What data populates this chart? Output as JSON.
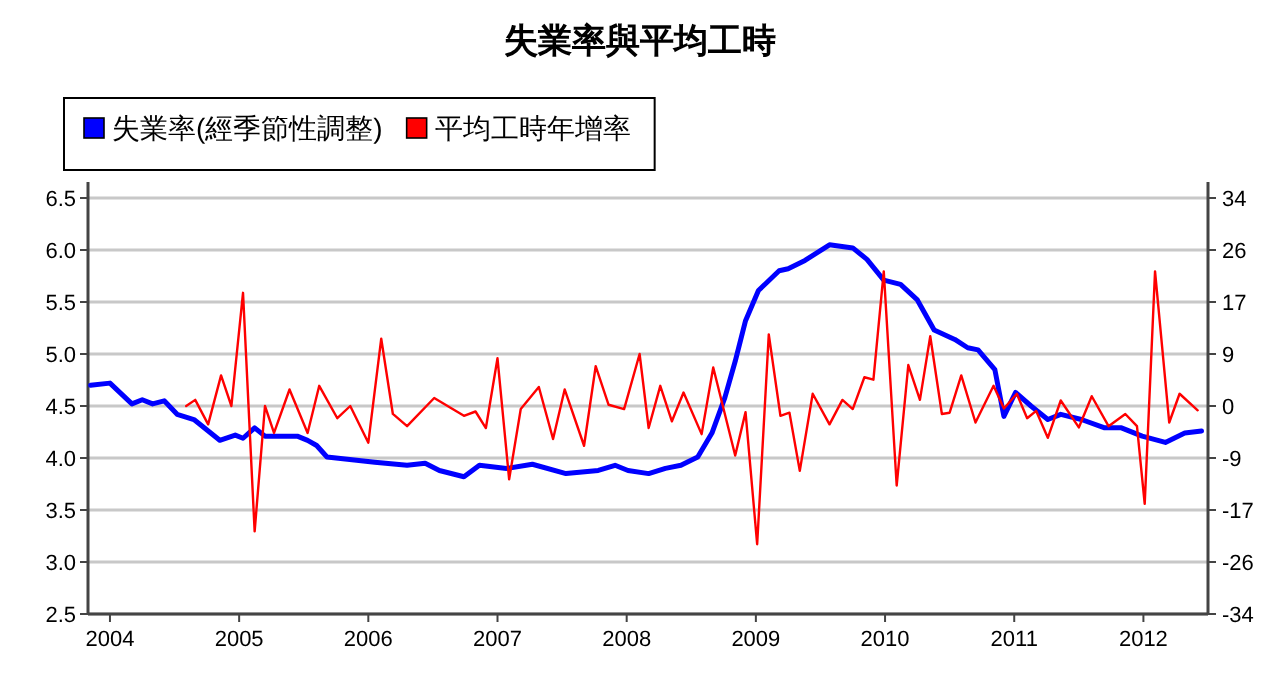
{
  "chart_data": {
    "type": "line",
    "title": "失業率與平均工時",
    "xlim": [
      2003.83,
      2012.5
    ],
    "xticks": [
      {
        "value": 2004,
        "label": "2004"
      },
      {
        "value": 2005,
        "label": "2005"
      },
      {
        "value": 2006,
        "label": "2006"
      },
      {
        "value": 2007,
        "label": "2007"
      },
      {
        "value": 2008,
        "label": "2008"
      },
      {
        "value": 2009,
        "label": "2009"
      },
      {
        "value": 2010,
        "label": "2010"
      },
      {
        "value": 2011,
        "label": "2011"
      },
      {
        "value": 2012,
        "label": "2012"
      }
    ],
    "ylim": [
      2.5,
      6.5
    ],
    "yticks": [
      {
        "value": 2.5,
        "label": "2.5"
      },
      {
        "value": 3,
        "label": "3.0"
      },
      {
        "value": 3.5,
        "label": "3.5"
      },
      {
        "value": 4,
        "label": "4.0"
      },
      {
        "value": 4.5,
        "label": "4.5"
      },
      {
        "value": 5,
        "label": "5.0"
      },
      {
        "value": 5.5,
        "label": "5.5"
      },
      {
        "value": 6,
        "label": "6.0"
      },
      {
        "value": 6.5,
        "label": "6.5"
      }
    ],
    "y2lim": [
      -34,
      34
    ],
    "y2ticks": [
      -34,
      {
        "value": -25.5,
        "label": "-26"
      },
      -17,
      {
        "value": -8.5,
        "label": "-9"
      },
      0,
      {
        "value": 8.5,
        "label": "9"
      },
      17,
      {
        "value": 25.5,
        "label": "26"
      },
      34
    ],
    "grid": "y",
    "legend": "top left",
    "series": [
      {
        "name": "失業率(經季節性調整)",
        "color": "#0000ff",
        "x": [
          2003.85,
          2004.0,
          2004.17,
          2004.25,
          2004.33,
          2004.42,
          2004.52,
          2004.65,
          2004.85,
          2004.97,
          2005.03,
          2005.12,
          2005.2,
          2005.45,
          2005.53,
          2005.6,
          2005.68,
          2006.05,
          2006.3,
          2006.44,
          2006.55,
          2006.74,
          2006.86,
          2007.07,
          2007.27,
          2007.53,
          2007.78,
          2007.91,
          2008.01,
          2008.17,
          2008.3,
          2008.42,
          2008.55,
          2008.66,
          2008.76,
          2008.84,
          2008.92,
          2009.02,
          2009.18,
          2009.25,
          2009.38,
          2009.57,
          2009.75,
          2009.86,
          2009.99,
          2010.12,
          2010.25,
          2010.38,
          2010.54,
          2010.64,
          2010.72,
          2010.85,
          2010.92,
          2011.01,
          2011.13,
          2011.26,
          2011.36,
          2011.52,
          2011.7,
          2011.83,
          2011.99,
          2012.17,
          2012.32,
          2012.45
        ],
        "values": [
          4.7,
          4.72,
          4.52,
          4.56,
          4.52,
          4.55,
          4.42,
          4.37,
          4.17,
          4.22,
          4.19,
          4.29,
          4.21,
          4.21,
          4.17,
          4.12,
          4.01,
          3.96,
          3.93,
          3.95,
          3.88,
          3.82,
          3.93,
          3.9,
          3.94,
          3.85,
          3.88,
          3.93,
          3.88,
          3.85,
          3.9,
          3.93,
          4.01,
          4.24,
          4.58,
          4.93,
          5.32,
          5.61,
          5.8,
          5.82,
          5.9,
          6.05,
          6.02,
          5.91,
          5.71,
          5.67,
          5.52,
          5.23,
          5.14,
          5.06,
          5.04,
          4.85,
          4.4,
          4.63,
          4.5,
          4.37,
          4.42,
          4.37,
          4.29,
          4.29,
          4.21,
          4.15,
          4.24,
          4.26
        ]
      },
      {
        "name": "平均工時年增率",
        "color": "#ff0000",
        "axis": "y2",
        "x": [
          2004.59,
          2004.66,
          2004.76,
          2004.86,
          2004.94,
          2005.03,
          2005.12,
          2005.2,
          2005.27,
          2005.39,
          2005.53,
          2005.62,
          2005.76,
          2005.86,
          2006.0,
          2006.1,
          2006.19,
          2006.3,
          2006.51,
          2006.74,
          2006.83,
          2006.91,
          2007.0,
          2007.09,
          2007.18,
          2007.32,
          2007.43,
          2007.52,
          2007.67,
          2007.76,
          2007.86,
          2007.98,
          2008.1,
          2008.17,
          2008.26,
          2008.35,
          2008.44,
          2008.58,
          2008.67,
          2008.84,
          2008.92,
          2009.01,
          2009.1,
          2009.19,
          2009.26,
          2009.34,
          2009.44,
          2009.57,
          2009.67,
          2009.75,
          2009.84,
          2009.91,
          2009.99,
          2010.09,
          2010.18,
          2010.27,
          2010.35,
          2010.44,
          2010.5,
          2010.59,
          2010.7,
          2010.84,
          2010.92,
          2011.02,
          2011.1,
          2011.17,
          2011.26,
          2011.36,
          2011.5,
          2011.6,
          2011.73,
          2011.86,
          2011.95,
          2012.01,
          2012.09,
          2012.2,
          2012.28,
          2012.42
        ],
        "values": [
          0,
          1,
          -3,
          5,
          0,
          18.5,
          -20.5,
          0,
          -4.4,
          2.7,
          -4.4,
          3.3,
          -2,
          0,
          -6,
          11,
          -1.3,
          -3.3,
          1.3,
          -1.6,
          -0.9,
          -3.6,
          7.8,
          -12,
          -0.5,
          3.1,
          -5.4,
          2.7,
          -6.5,
          6.5,
          0.2,
          -0.5,
          8.5,
          -3.6,
          3.3,
          -2.5,
          2.2,
          -4.6,
          6.3,
          -8.1,
          -1,
          -22.6,
          11.7,
          -1.6,
          -1.1,
          -10.6,
          2,
          -3,
          1,
          -0.5,
          4.7,
          4.3,
          22,
          -13,
          6.7,
          1,
          11.4,
          -1.3,
          -1.1,
          5,
          -2.7,
          3.3,
          -0.4,
          2,
          -2,
          -0.8,
          -5.2,
          0.9,
          -3.5,
          1.6,
          -3.3,
          -1.3,
          -3.3,
          -16,
          22,
          -2.7,
          2,
          -0.7
        ]
      }
    ]
  }
}
